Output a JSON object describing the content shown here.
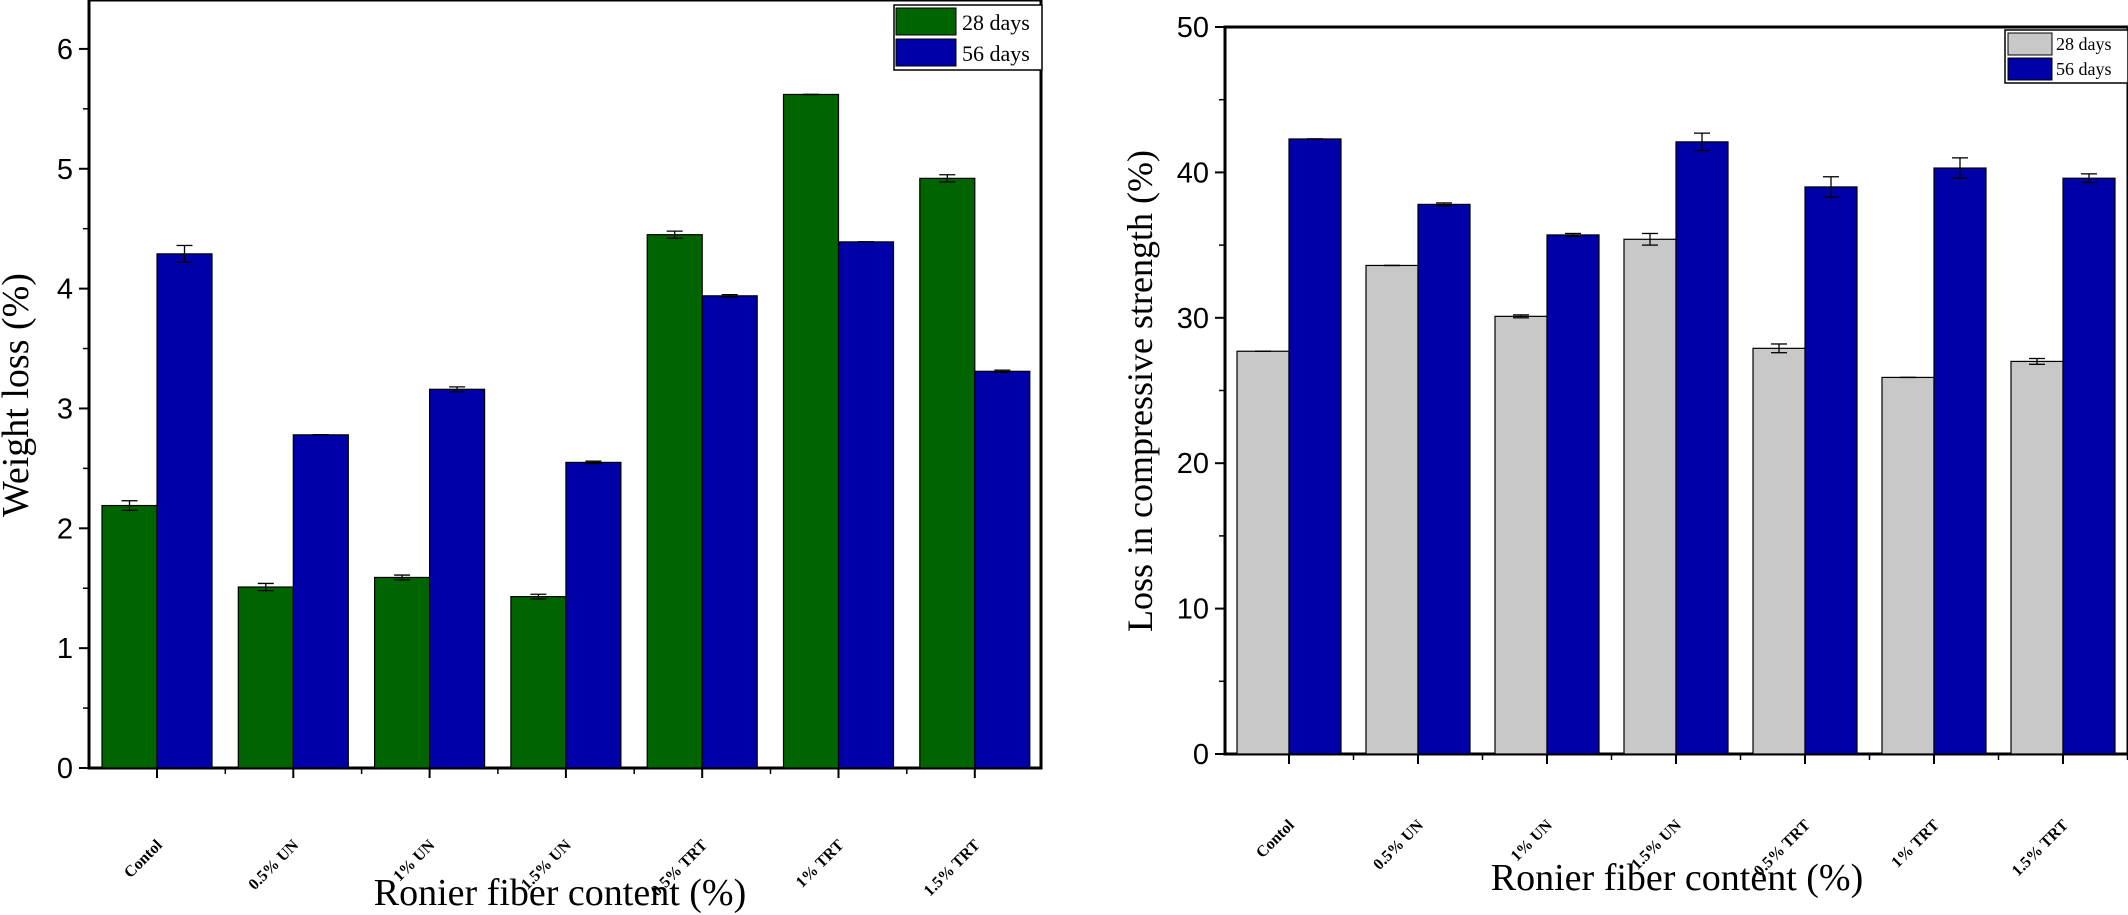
{
  "chart_data": [
    {
      "type": "bar",
      "xlabel": "Ronier fiber content (%)",
      "ylabel": "Weight loss (%)",
      "ylim": [
        0,
        6.5
      ],
      "yticks": [
        0,
        1,
        2,
        3,
        4,
        5,
        6
      ],
      "categories": [
        "Contol",
        "0.5% UN",
        "1% UN",
        "1.5% UN",
        "0.5% TRT",
        "1% TRT",
        "1.5% TRT"
      ],
      "series": [
        {
          "name": "28 days",
          "color": "#006400",
          "values": [
            2.19,
            1.51,
            1.59,
            1.43,
            4.45,
            5.62,
            4.92
          ],
          "errors": [
            0.04,
            0.03,
            0.02,
            0.02,
            0.03,
            0.0,
            0.03
          ]
        },
        {
          "name": "56 days",
          "color": "#0000a8",
          "values": [
            4.29,
            2.78,
            3.16,
            2.55,
            3.94,
            4.39,
            3.31
          ],
          "errors": [
            0.07,
            0.0,
            0.02,
            0.01,
            0.01,
            0.0,
            0.01
          ]
        }
      ],
      "legend": "top-right",
      "grid": false
    },
    {
      "type": "bar",
      "xlabel": "Ronier fiber content (%)",
      "ylabel": "Loss in compressive strength (%)",
      "ylim": [
        0,
        50
      ],
      "yticks": [
        0,
        10,
        20,
        30,
        40,
        50
      ],
      "categories": [
        "Contol",
        "0.5% UN",
        "1% UN",
        "1.5% UN",
        "0.5% TRT",
        "1% TRT",
        "1.5% TRT"
      ],
      "series": [
        {
          "name": "28 days",
          "color": "#c8c8c8",
          "values": [
            27.7,
            33.6,
            30.1,
            35.4,
            27.9,
            25.9,
            27.0
          ],
          "errors": [
            0.0,
            0.0,
            0.1,
            0.4,
            0.3,
            0.0,
            0.2
          ]
        },
        {
          "name": "56 days",
          "color": "#0000a8",
          "values": [
            42.3,
            37.8,
            35.7,
            42.1,
            39.0,
            40.3,
            39.6
          ],
          "errors": [
            0.0,
            0.1,
            0.1,
            0.6,
            0.7,
            0.7,
            0.3
          ]
        }
      ],
      "legend": "top-right",
      "grid": false
    }
  ]
}
